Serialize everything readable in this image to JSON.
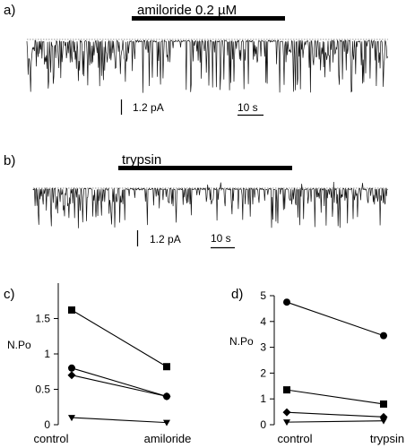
{
  "chart_data": [
    {
      "type": "trace",
      "panel_label": "a)",
      "bar_label": "amiloride 0.2 µM",
      "scale_current": "1.2 pA",
      "scale_time": "10 s"
    },
    {
      "type": "trace",
      "panel_label": "b)",
      "bar_label": "trypsin",
      "scale_current": "1.2 pA",
      "scale_time": "10 s"
    },
    {
      "type": "line",
      "panel_label": "c)",
      "categories": [
        "control",
        "amiloride"
      ],
      "ylabel": "N.Po",
      "ylim": [
        0,
        2
      ],
      "yticks": [
        0,
        0.5,
        1,
        1.5
      ],
      "ytick_labels": [
        "0",
        "0.5",
        "1",
        "1.5"
      ],
      "series": [
        {
          "marker": "square",
          "values": [
            1.62,
            0.82
          ]
        },
        {
          "marker": "circle",
          "values": [
            0.8,
            0.4
          ]
        },
        {
          "marker": "diamond",
          "values": [
            0.7,
            0.4
          ]
        },
        {
          "marker": "triangle-down",
          "values": [
            0.1,
            0.03
          ]
        }
      ]
    },
    {
      "type": "line",
      "panel_label": "d)",
      "categories": [
        "control",
        "trypsin"
      ],
      "ylabel": "N.Po",
      "ylim": [
        0,
        5
      ],
      "yticks": [
        0,
        1,
        2,
        3,
        4,
        5
      ],
      "ytick_labels": [
        "0",
        "1",
        "2",
        "3",
        "4",
        "5"
      ],
      "series": [
        {
          "marker": "circle",
          "values": [
            4.75,
            3.45
          ]
        },
        {
          "marker": "square",
          "values": [
            1.35,
            0.8
          ]
        },
        {
          "marker": "diamond",
          "values": [
            0.48,
            0.3
          ]
        },
        {
          "marker": "triangle-down",
          "values": [
            0.1,
            0.15
          ]
        }
      ]
    }
  ]
}
